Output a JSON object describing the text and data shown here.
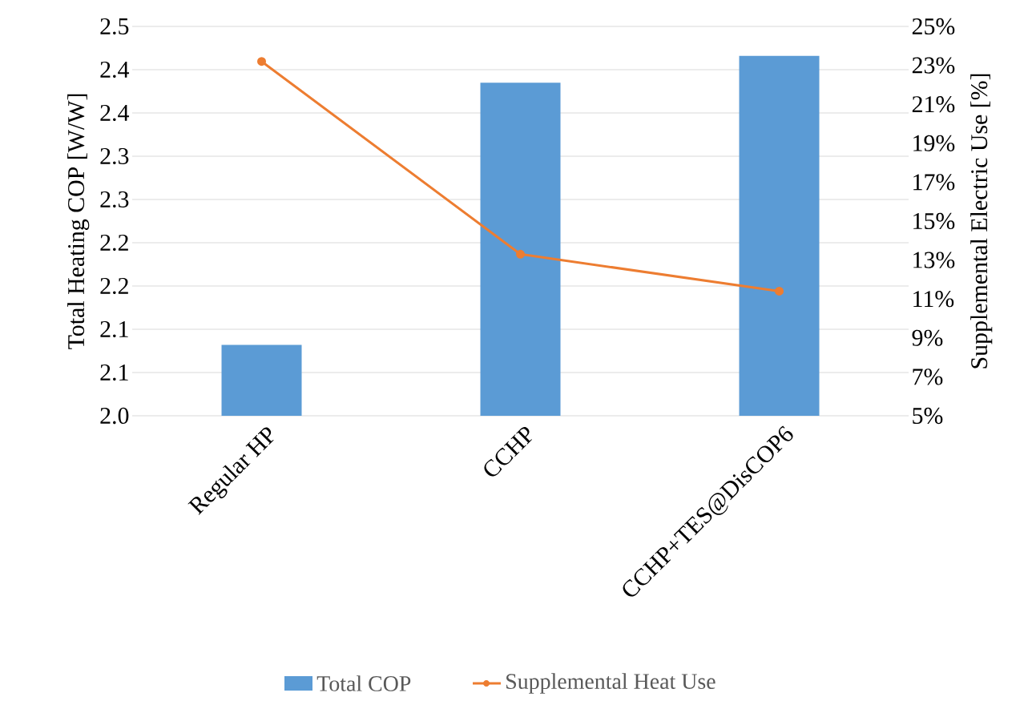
{
  "chart_data": {
    "type": "bar",
    "ylabel": "Total Heating COP [W/W]",
    "y2label": "Supplemental Electric Use [%]",
    "categories": [
      "Regular HP",
      "CCHP",
      "CCHP+TES@DisCOP6"
    ],
    "series": [
      {
        "name": "Total COP",
        "color": "#5b9bd5",
        "values": [
          2.082,
          2.385,
          2.416
        ]
      },
      {
        "name": "Supplemental Heat Use",
        "type": "line",
        "axis": "y2",
        "color": "#ed7d31",
        "marker": "circle",
        "line_style": "solid",
        "values": [
          23.2,
          13.3,
          11.4
        ]
      }
    ],
    "ylim": [
      2.0,
      2.45
    ],
    "yticks": [
      {
        "value": 2.0,
        "label": "2.0"
      },
      {
        "value": 2.05,
        "label": "2.1"
      },
      {
        "value": 2.1,
        "label": "2.1"
      },
      {
        "value": 2.15,
        "label": "2.2"
      },
      {
        "value": 2.2,
        "label": "2.2"
      },
      {
        "value": 2.25,
        "label": "2.3"
      },
      {
        "value": 2.3,
        "label": "2.3"
      },
      {
        "value": 2.35,
        "label": "2.4"
      },
      {
        "value": 2.4,
        "label": "2.4"
      },
      {
        "value": 2.45,
        "label": "2.5"
      }
    ],
    "y2lim": [
      5,
      25
    ],
    "y2ticks": [
      {
        "value": 5,
        "label": "5%"
      },
      {
        "value": 7,
        "label": "7%"
      },
      {
        "value": 9,
        "label": "9%"
      },
      {
        "value": 11,
        "label": "11%"
      },
      {
        "value": 13,
        "label": "13%"
      },
      {
        "value": 15,
        "label": "15%"
      },
      {
        "value": 17,
        "label": "17%"
      },
      {
        "value": 19,
        "label": "19%"
      },
      {
        "value": 21,
        "label": "21%"
      },
      {
        "value": 23,
        "label": "23%"
      },
      {
        "value": 25,
        "label": "25%"
      }
    ],
    "grid": "y",
    "legend": "bottom"
  }
}
